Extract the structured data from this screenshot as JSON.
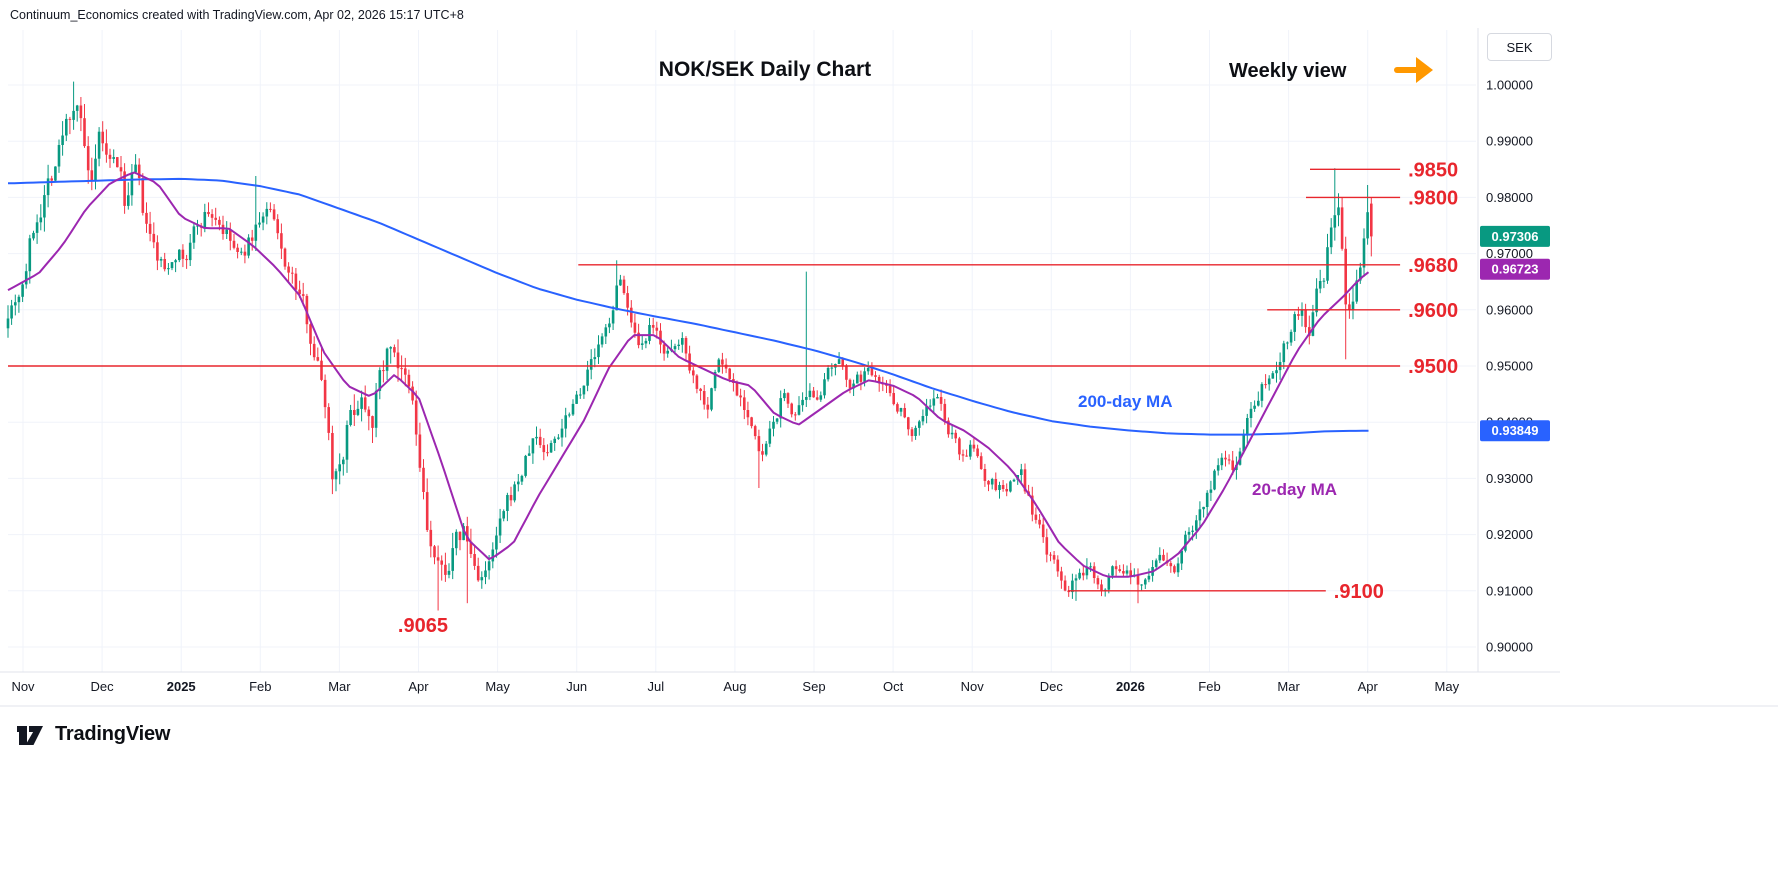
{
  "attribution": "Continuum_Economics created with TradingView.com, Apr 02, 2026 15:17 UTC+8",
  "chart": {
    "title": "NOK/SEK Daily Chart",
    "weekly_view_label": "Weekly view",
    "symbol_currency": "SEK",
    "ma200_label": "200-day MA",
    "ma20_label": "20-day MA"
  },
  "brand": {
    "name": "TradingView"
  },
  "colors": {
    "background": "#ffffff",
    "text": "#131722",
    "grid": "#f0f3fa",
    "border": "#e0e3eb",
    "candle_up": "#089981",
    "candle_down": "#f23645",
    "ma200": "#2962ff",
    "ma20": "#9c27b0",
    "level": "#e8262d",
    "arrow": "#ff9800"
  },
  "chart_data": {
    "type": "candlestick",
    "pair": "NOK/SEK",
    "timeframe": "Daily",
    "x_unit": "months from Nov 2024",
    "y_range": [
      0.9,
      1.0
    ],
    "last_close": 0.97306,
    "x_axis_months": [
      {
        "label": "Nov",
        "t": 0
      },
      {
        "label": "Dec",
        "t": 1
      },
      {
        "label": "2025",
        "t": 2,
        "bold": true
      },
      {
        "label": "Feb",
        "t": 3
      },
      {
        "label": "Mar",
        "t": 4
      },
      {
        "label": "Apr",
        "t": 5
      },
      {
        "label": "May",
        "t": 6
      },
      {
        "label": "Jun",
        "t": 7
      },
      {
        "label": "Jul",
        "t": 8
      },
      {
        "label": "Aug",
        "t": 9
      },
      {
        "label": "Sep",
        "t": 10
      },
      {
        "label": "Oct",
        "t": 11
      },
      {
        "label": "Nov",
        "t": 12
      },
      {
        "label": "Dec",
        "t": 13
      },
      {
        "label": "2026",
        "t": 14,
        "bold": true
      },
      {
        "label": "Feb",
        "t": 15
      },
      {
        "label": "Mar",
        "t": 16
      },
      {
        "label": "Apr",
        "t": 17
      },
      {
        "label": "May",
        "t": 18
      }
    ],
    "y_axis_ticks": [
      {
        "label": "1.00000",
        "price": 1.0
      },
      {
        "label": "0.99000",
        "price": 0.99
      },
      {
        "label": "0.98000",
        "price": 0.98
      },
      {
        "label": "0.97000",
        "price": 0.97
      },
      {
        "label": "0.96000",
        "price": 0.96
      },
      {
        "label": "0.95000",
        "price": 0.95
      },
      {
        "label": "0.94000",
        "price": 0.94
      },
      {
        "label": "0.93000",
        "price": 0.93
      },
      {
        "label": "0.92000",
        "price": 0.92
      },
      {
        "label": "0.91000",
        "price": 0.91
      },
      {
        "label": "0.90000",
        "price": 0.9
      }
    ],
    "levels": [
      {
        "label": ".9850",
        "price": 0.985,
        "t1": 16.27,
        "t2": 17.41
      },
      {
        "label": ".9800",
        "price": 0.98,
        "t1": 16.22,
        "t2": 17.41
      },
      {
        "label": ".9680",
        "price": 0.968,
        "t1": 7.02,
        "t2": 17.41
      },
      {
        "label": ".9600",
        "price": 0.96,
        "t1": 15.73,
        "t2": 17.41
      },
      {
        "label": ".9500",
        "price": 0.95,
        "t1": -0.19,
        "t2": 17.41
      },
      {
        "label": ".9100",
        "price": 0.91,
        "t1": 13.21,
        "t2": 16.47
      }
    ],
    "text_annotations": [
      {
        "label": ".9065",
        "t": 4.74,
        "price": 0.9039
      }
    ],
    "last_price_badge": {
      "name": "last-price",
      "value": "0.97306",
      "price": 0.97306,
      "color": "#089981"
    },
    "ma20_badge": {
      "name": "ma20",
      "value": "0.96723",
      "price": 0.96723,
      "color": "#9c27b0"
    },
    "ma200_badge": {
      "name": "ma200",
      "value": "0.93849",
      "price": 0.93849,
      "color": "#2962ff"
    },
    "price_path_anchors": [
      [
        -0.19,
        0.9605
      ],
      [
        0.0,
        0.9655
      ],
      [
        0.15,
        0.9755
      ],
      [
        0.3,
        0.9825
      ],
      [
        0.45,
        0.9885
      ],
      [
        0.58,
        0.9945
      ],
      [
        0.68,
        0.9985
      ],
      [
        0.78,
        0.9875
      ],
      [
        0.88,
        0.9795
      ],
      [
        0.98,
        0.9905
      ],
      [
        1.08,
        0.9845
      ],
      [
        1.2,
        0.9855
      ],
      [
        1.3,
        0.9785
      ],
      [
        1.42,
        0.9845
      ],
      [
        1.55,
        0.9745
      ],
      [
        1.68,
        0.9695
      ],
      [
        1.8,
        0.9665
      ],
      [
        1.92,
        0.9715
      ],
      [
        2.05,
        0.9685
      ],
      [
        2.18,
        0.9745
      ],
      [
        2.32,
        0.9775
      ],
      [
        2.45,
        0.9765
      ],
      [
        2.6,
        0.9725
      ],
      [
        2.75,
        0.9685
      ],
      [
        2.88,
        0.9725
      ],
      [
        3.0,
        0.9765
      ],
      [
        3.12,
        0.9775
      ],
      [
        3.25,
        0.9705
      ],
      [
        3.4,
        0.9655
      ],
      [
        3.55,
        0.9605
      ],
      [
        3.7,
        0.9525
      ],
      [
        3.82,
        0.9445
      ],
      [
        3.92,
        0.9305
      ],
      [
        4.02,
        0.9345
      ],
      [
        4.12,
        0.9405
      ],
      [
        4.27,
        0.9455
      ],
      [
        4.42,
        0.9425
      ],
      [
        4.55,
        0.9505
      ],
      [
        4.68,
        0.9545
      ],
      [
        4.82,
        0.9465
      ],
      [
        4.92,
        0.9425
      ],
      [
        5.02,
        0.9315
      ],
      [
        5.12,
        0.9195
      ],
      [
        5.27,
        0.9115
      ],
      [
        5.42,
        0.9165
      ],
      [
        5.57,
        0.9205
      ],
      [
        5.72,
        0.9135
      ],
      [
        5.87,
        0.9125
      ],
      [
        6.02,
        0.9205
      ],
      [
        6.17,
        0.9265
      ],
      [
        6.32,
        0.9315
      ],
      [
        6.47,
        0.9375
      ],
      [
        6.62,
        0.9345
      ],
      [
        6.77,
        0.9385
      ],
      [
        6.92,
        0.9435
      ],
      [
        7.07,
        0.9475
      ],
      [
        7.22,
        0.9515
      ],
      [
        7.37,
        0.9555
      ],
      [
        7.5,
        0.9635
      ],
      [
        7.58,
        0.9655
      ],
      [
        7.68,
        0.9575
      ],
      [
        7.8,
        0.9505
      ],
      [
        7.92,
        0.9555
      ],
      [
        8.05,
        0.9545
      ],
      [
        8.2,
        0.9515
      ],
      [
        8.35,
        0.9545
      ],
      [
        8.5,
        0.9475
      ],
      [
        8.65,
        0.9435
      ],
      [
        8.8,
        0.9515
      ],
      [
        8.95,
        0.9475
      ],
      [
        9.1,
        0.9445
      ],
      [
        9.22,
        0.9395
      ],
      [
        9.32,
        0.9325
      ],
      [
        9.45,
        0.9375
      ],
      [
        9.6,
        0.9445
      ],
      [
        9.75,
        0.9415
      ],
      [
        9.9,
        0.9425
      ],
      [
        10.05,
        0.9455
      ],
      [
        10.2,
        0.9485
      ],
      [
        10.35,
        0.9495
      ],
      [
        10.5,
        0.9465
      ],
      [
        10.65,
        0.9485
      ],
      [
        10.8,
        0.9495
      ],
      [
        10.95,
        0.9455
      ],
      [
        11.1,
        0.9425
      ],
      [
        11.25,
        0.9385
      ],
      [
        11.4,
        0.9425
      ],
      [
        11.55,
        0.9445
      ],
      [
        11.7,
        0.9385
      ],
      [
        11.85,
        0.9345
      ],
      [
        12.0,
        0.9355
      ],
      [
        12.15,
        0.9305
      ],
      [
        12.3,
        0.9285
      ],
      [
        12.45,
        0.9275
      ],
      [
        12.6,
        0.9315
      ],
      [
        12.75,
        0.9245
      ],
      [
        12.9,
        0.9185
      ],
      [
        13.05,
        0.9135
      ],
      [
        13.2,
        0.9105
      ],
      [
        13.35,
        0.9115
      ],
      [
        13.5,
        0.9145
      ],
      [
        13.65,
        0.9115
      ],
      [
        13.8,
        0.9145
      ],
      [
        13.95,
        0.9125
      ],
      [
        14.1,
        0.9105
      ],
      [
        14.25,
        0.9145
      ],
      [
        14.4,
        0.9155
      ],
      [
        14.55,
        0.9135
      ],
      [
        14.7,
        0.9195
      ],
      [
        14.85,
        0.9235
      ],
      [
        15.0,
        0.9285
      ],
      [
        15.15,
        0.9335
      ],
      [
        15.3,
        0.9315
      ],
      [
        15.45,
        0.9395
      ],
      [
        15.6,
        0.9455
      ],
      [
        15.75,
        0.9495
      ],
      [
        15.9,
        0.9525
      ],
      [
        16.05,
        0.9585
      ],
      [
        16.15,
        0.9605
      ],
      [
        16.25,
        0.9565
      ],
      [
        16.35,
        0.9615
      ],
      [
        16.45,
        0.9655
      ],
      [
        16.55,
        0.9745
      ],
      [
        16.62,
        0.9795
      ],
      [
        16.68,
        0.97
      ],
      [
        16.74,
        0.9555
      ],
      [
        16.82,
        0.9625
      ],
      [
        16.9,
        0.9685
      ],
      [
        16.97,
        0.9745
      ],
      [
        17.02,
        0.9785
      ],
      [
        17.06,
        0.9731
      ]
    ],
    "volatility_anchors": [
      [
        -0.19,
        1.2
      ],
      [
        0.7,
        1.4
      ],
      [
        1.5,
        1.1
      ],
      [
        2.5,
        0.9
      ],
      [
        3.5,
        1.0
      ],
      [
        4.0,
        1.4
      ],
      [
        5.2,
        1.5
      ],
      [
        6.0,
        1.0
      ],
      [
        7.0,
        0.9
      ],
      [
        8.0,
        0.85
      ],
      [
        9.0,
        0.85
      ],
      [
        10.0,
        0.8
      ],
      [
        11.0,
        0.75
      ],
      [
        12.0,
        0.75
      ],
      [
        13.0,
        0.8
      ],
      [
        14.0,
        0.75
      ],
      [
        15.0,
        0.8
      ],
      [
        16.0,
        1.0
      ],
      [
        16.6,
        1.4
      ],
      [
        17.06,
        1.2
      ]
    ],
    "wick_events": [
      {
        "t": 0.66,
        "high": 1.0006
      },
      {
        "t": 0.98,
        "high": 0.9925
      },
      {
        "t": 2.96,
        "high": 0.9838
      },
      {
        "t": 3.92,
        "low": 0.9272
      },
      {
        "t": 5.25,
        "low": 0.9065
      },
      {
        "t": 5.6,
        "low": 0.9078
      },
      {
        "t": 7.52,
        "high": 0.9688
      },
      {
        "t": 9.3,
        "low": 0.9283
      },
      {
        "t": 9.92,
        "high": 0.9668
      },
      {
        "t": 13.3,
        "low": 0.9082
      },
      {
        "t": 14.1,
        "low": 0.9078
      },
      {
        "t": 16.6,
        "high": 0.9852
      },
      {
        "t": 16.74,
        "low": 0.9512
      },
      {
        "t": 17.0,
        "high": 0.9822
      },
      {
        "t": 17.06,
        "low": 0.9695
      }
    ],
    "ma200_points": [
      [
        -0.19,
        0.9825
      ],
      [
        0.5,
        0.9828
      ],
      [
        1.0,
        0.983
      ],
      [
        1.5,
        0.9832
      ],
      [
        2.0,
        0.9833
      ],
      [
        2.5,
        0.983
      ],
      [
        3.0,
        0.982
      ],
      [
        3.5,
        0.9805
      ],
      [
        4.0,
        0.978
      ],
      [
        4.5,
        0.9755
      ],
      [
        5.0,
        0.9725
      ],
      [
        5.5,
        0.9695
      ],
      [
        6.0,
        0.9665
      ],
      [
        6.5,
        0.9638
      ],
      [
        7.0,
        0.9618
      ],
      [
        7.5,
        0.9602
      ],
      [
        8.0,
        0.9588
      ],
      [
        8.5,
        0.9575
      ],
      [
        9.0,
        0.956
      ],
      [
        9.5,
        0.9545
      ],
      [
        10.0,
        0.9528
      ],
      [
        10.5,
        0.9508
      ],
      [
        11.0,
        0.9485
      ],
      [
        11.5,
        0.946
      ],
      [
        12.0,
        0.9438
      ],
      [
        12.5,
        0.9418
      ],
      [
        13.0,
        0.9402
      ],
      [
        13.5,
        0.9392
      ],
      [
        14.0,
        0.9385
      ],
      [
        14.5,
        0.938
      ],
      [
        15.0,
        0.9378
      ],
      [
        15.5,
        0.9378
      ],
      [
        16.0,
        0.938
      ],
      [
        16.5,
        0.9384
      ],
      [
        17.06,
        0.93849
      ]
    ],
    "ma20_points": [
      [
        -0.19,
        0.9635
      ],
      [
        0.2,
        0.9665
      ],
      [
        0.5,
        0.9715
      ],
      [
        0.8,
        0.978
      ],
      [
        1.1,
        0.9825
      ],
      [
        1.4,
        0.9845
      ],
      [
        1.7,
        0.9825
      ],
      [
        2.0,
        0.9765
      ],
      [
        2.3,
        0.9745
      ],
      [
        2.6,
        0.9745
      ],
      [
        2.9,
        0.9715
      ],
      [
        3.2,
        0.9675
      ],
      [
        3.5,
        0.9625
      ],
      [
        3.8,
        0.9525
      ],
      [
        4.1,
        0.9465
      ],
      [
        4.4,
        0.9445
      ],
      [
        4.7,
        0.9485
      ],
      [
        5.0,
        0.9445
      ],
      [
        5.3,
        0.9325
      ],
      [
        5.6,
        0.9195
      ],
      [
        5.9,
        0.9155
      ],
      [
        6.2,
        0.9185
      ],
      [
        6.5,
        0.9265
      ],
      [
        6.8,
        0.9335
      ],
      [
        7.1,
        0.9405
      ],
      [
        7.4,
        0.9495
      ],
      [
        7.7,
        0.9555
      ],
      [
        8.0,
        0.9555
      ],
      [
        8.3,
        0.9515
      ],
      [
        8.6,
        0.9495
      ],
      [
        8.9,
        0.9475
      ],
      [
        9.2,
        0.9465
      ],
      [
        9.5,
        0.9415
      ],
      [
        9.8,
        0.9395
      ],
      [
        10.1,
        0.9425
      ],
      [
        10.4,
        0.9455
      ],
      [
        10.7,
        0.9475
      ],
      [
        11.0,
        0.9465
      ],
      [
        11.3,
        0.9445
      ],
      [
        11.6,
        0.9405
      ],
      [
        11.9,
        0.9385
      ],
      [
        12.2,
        0.9355
      ],
      [
        12.5,
        0.9315
      ],
      [
        12.8,
        0.9255
      ],
      [
        13.1,
        0.9185
      ],
      [
        13.4,
        0.9145
      ],
      [
        13.7,
        0.9125
      ],
      [
        14.0,
        0.9125
      ],
      [
        14.3,
        0.9135
      ],
      [
        14.6,
        0.9165
      ],
      [
        14.9,
        0.9215
      ],
      [
        15.2,
        0.9285
      ],
      [
        15.5,
        0.9365
      ],
      [
        15.8,
        0.9445
      ],
      [
        16.1,
        0.9525
      ],
      [
        16.4,
        0.9585
      ],
      [
        16.7,
        0.9625
      ],
      [
        16.9,
        0.9655
      ],
      [
        17.06,
        0.96723
      ]
    ]
  }
}
